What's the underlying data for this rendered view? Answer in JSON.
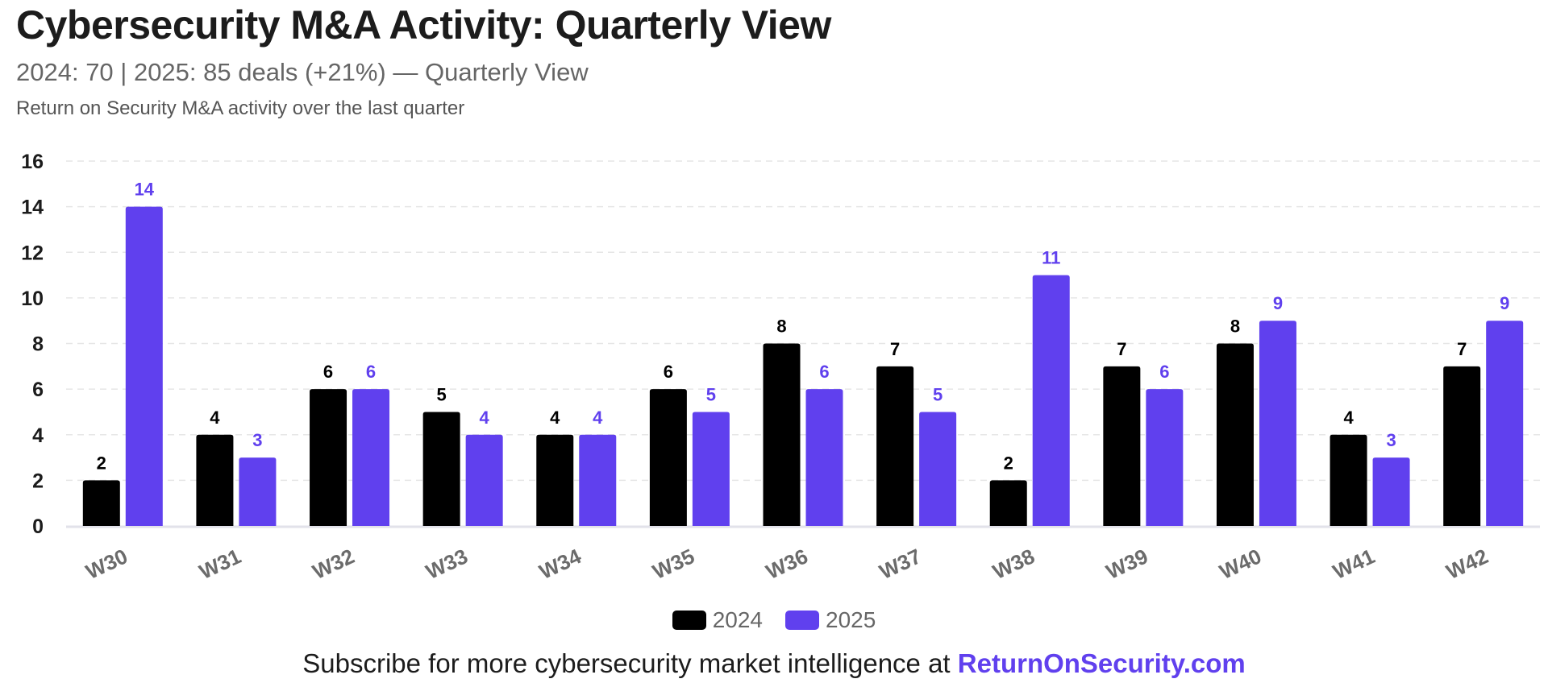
{
  "header": {
    "title": "Cybersecurity M&A Activity: Quarterly View",
    "subtitle": "2024: 70 | 2025: 85 deals (+21%) — Quarterly View",
    "description": "Return on Security M&A activity over the last quarter"
  },
  "footer": {
    "text": "Subscribe for more cybersecurity market intelligence at ",
    "link": "ReturnOnSecurity.com"
  },
  "colors": {
    "series_2024": "#000000",
    "series_2025": "#6040ee",
    "grid": "#e6e6e6",
    "axis": "#e2e2ea"
  },
  "chart_data": {
    "type": "bar",
    "title": "Cybersecurity M&A Activity: Quarterly View",
    "subtitle": "2024: 70 | 2025: 85 deals (+21%) — Quarterly View",
    "xlabel": "",
    "ylabel": "",
    "categories": [
      "W30",
      "W31",
      "W32",
      "W33",
      "W34",
      "W35",
      "W36",
      "W37",
      "W38",
      "W39",
      "W40",
      "W41",
      "W42"
    ],
    "series": [
      {
        "name": "2024",
        "color": "#000000",
        "values": [
          2,
          4,
          6,
          5,
          4,
          6,
          8,
          7,
          2,
          7,
          8,
          4,
          7
        ]
      },
      {
        "name": "2025",
        "color": "#6040ee",
        "values": [
          14,
          3,
          6,
          4,
          4,
          5,
          6,
          5,
          11,
          6,
          9,
          3,
          9
        ]
      }
    ],
    "ylim": [
      0,
      16
    ],
    "yticks": [
      0,
      2,
      4,
      6,
      8,
      10,
      12,
      14,
      16
    ],
    "grid": true,
    "legend": "bottom-center",
    "data_labels": true
  }
}
